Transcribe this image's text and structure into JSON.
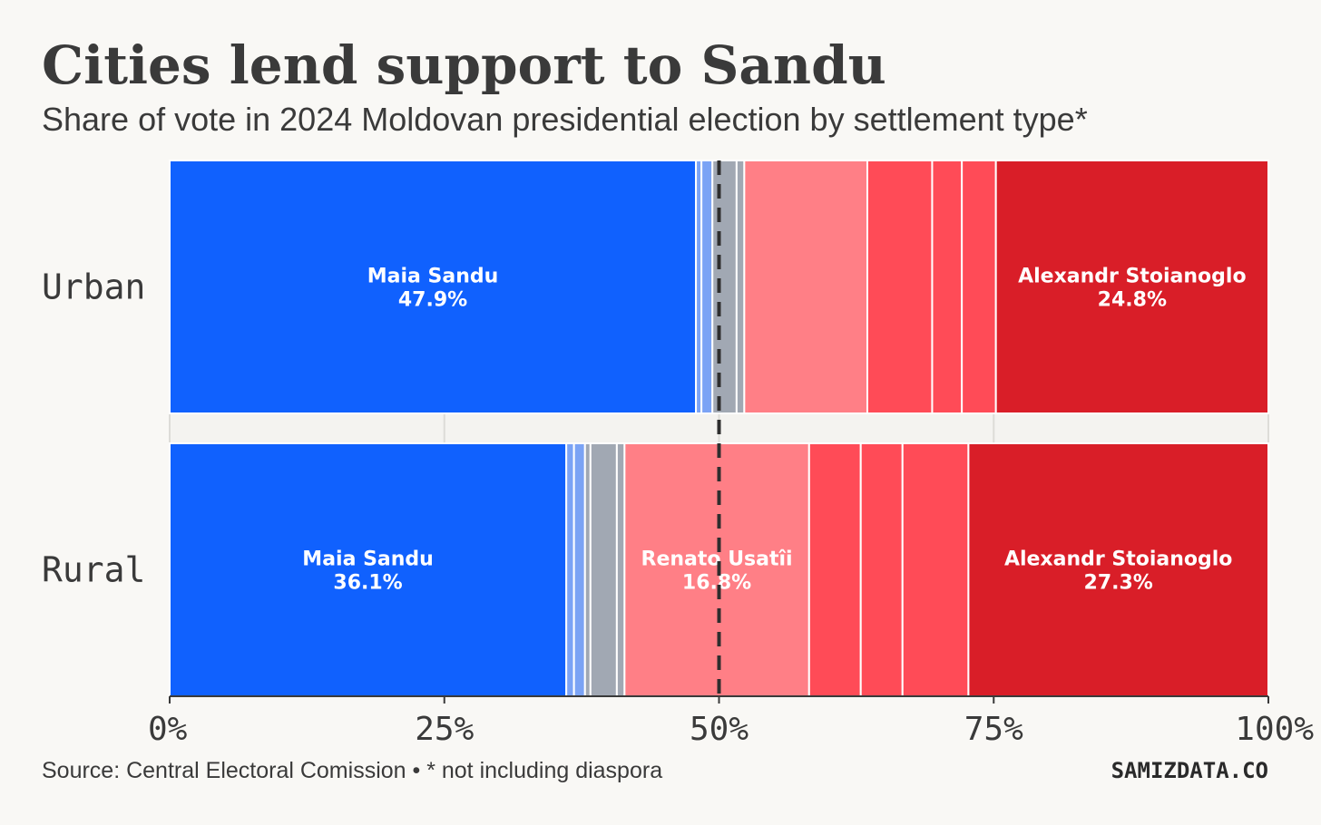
{
  "chart_data": {
    "type": "stacked-bar",
    "title": "Cities lend support to Sandu",
    "subtitle": "Share of vote in 2024 Moldovan presidential election by settlement type*",
    "source": "Source: Central Electoral Comission • * not including diaspora",
    "brand": "SAMIZDATA.CO",
    "xlim": [
      0,
      100
    ],
    "xticks": [
      {
        "value": 0,
        "label": "0%"
      },
      {
        "value": 25,
        "label": "25%"
      },
      {
        "value": 50,
        "label": "50%"
      },
      {
        "value": 75,
        "label": "75%"
      },
      {
        "value": 100,
        "label": "100%"
      }
    ],
    "reference_line": 50,
    "rows": [
      {
        "label": "Urban",
        "segments": [
          {
            "value": 47.9,
            "color": "#1061fe",
            "name": "Maia Sandu",
            "value_label": "47.9%"
          },
          {
            "value": 0.5,
            "color": "#7ba3f5"
          },
          {
            "value": 1.0,
            "color": "#7ba3f5"
          },
          {
            "value": 2.2,
            "color": "#a1a8b3"
          },
          {
            "value": 0.7,
            "color": "#a1a8b3"
          },
          {
            "value": 11.2,
            "color": "#ff7f86"
          },
          {
            "value": 5.9,
            "color": "#ff4b57"
          },
          {
            "value": 2.7,
            "color": "#ff4b57"
          },
          {
            "value": 3.1,
            "color": "#ff4b57"
          },
          {
            "value": 24.8,
            "color": "#d91e28",
            "name": "Alexandr Stoianoglo",
            "value_label": "24.8%"
          }
        ]
      },
      {
        "label": "Rural",
        "segments": [
          {
            "value": 36.1,
            "color": "#1061fe",
            "name": "Maia Sandu",
            "value_label": "36.1%"
          },
          {
            "value": 0.7,
            "color": "#7ba3f5"
          },
          {
            "value": 1.0,
            "color": "#7ba3f5"
          },
          {
            "value": 0.5,
            "color": "#a1a8b3"
          },
          {
            "value": 2.4,
            "color": "#a1a8b3"
          },
          {
            "value": 0.7,
            "color": "#a1a8b3"
          },
          {
            "value": 16.8,
            "color": "#ff7f86",
            "name": "Renato Usatîi",
            "value_label": "16.8%"
          },
          {
            "value": 4.7,
            "color": "#ff4b57"
          },
          {
            "value": 3.8,
            "color": "#ff4b57"
          },
          {
            "value": 6.0,
            "color": "#ff4b57"
          },
          {
            "value": 27.3,
            "color": "#d91e28",
            "name": "Alexandr Stoianoglo",
            "value_label": "27.3%"
          }
        ]
      }
    ]
  }
}
